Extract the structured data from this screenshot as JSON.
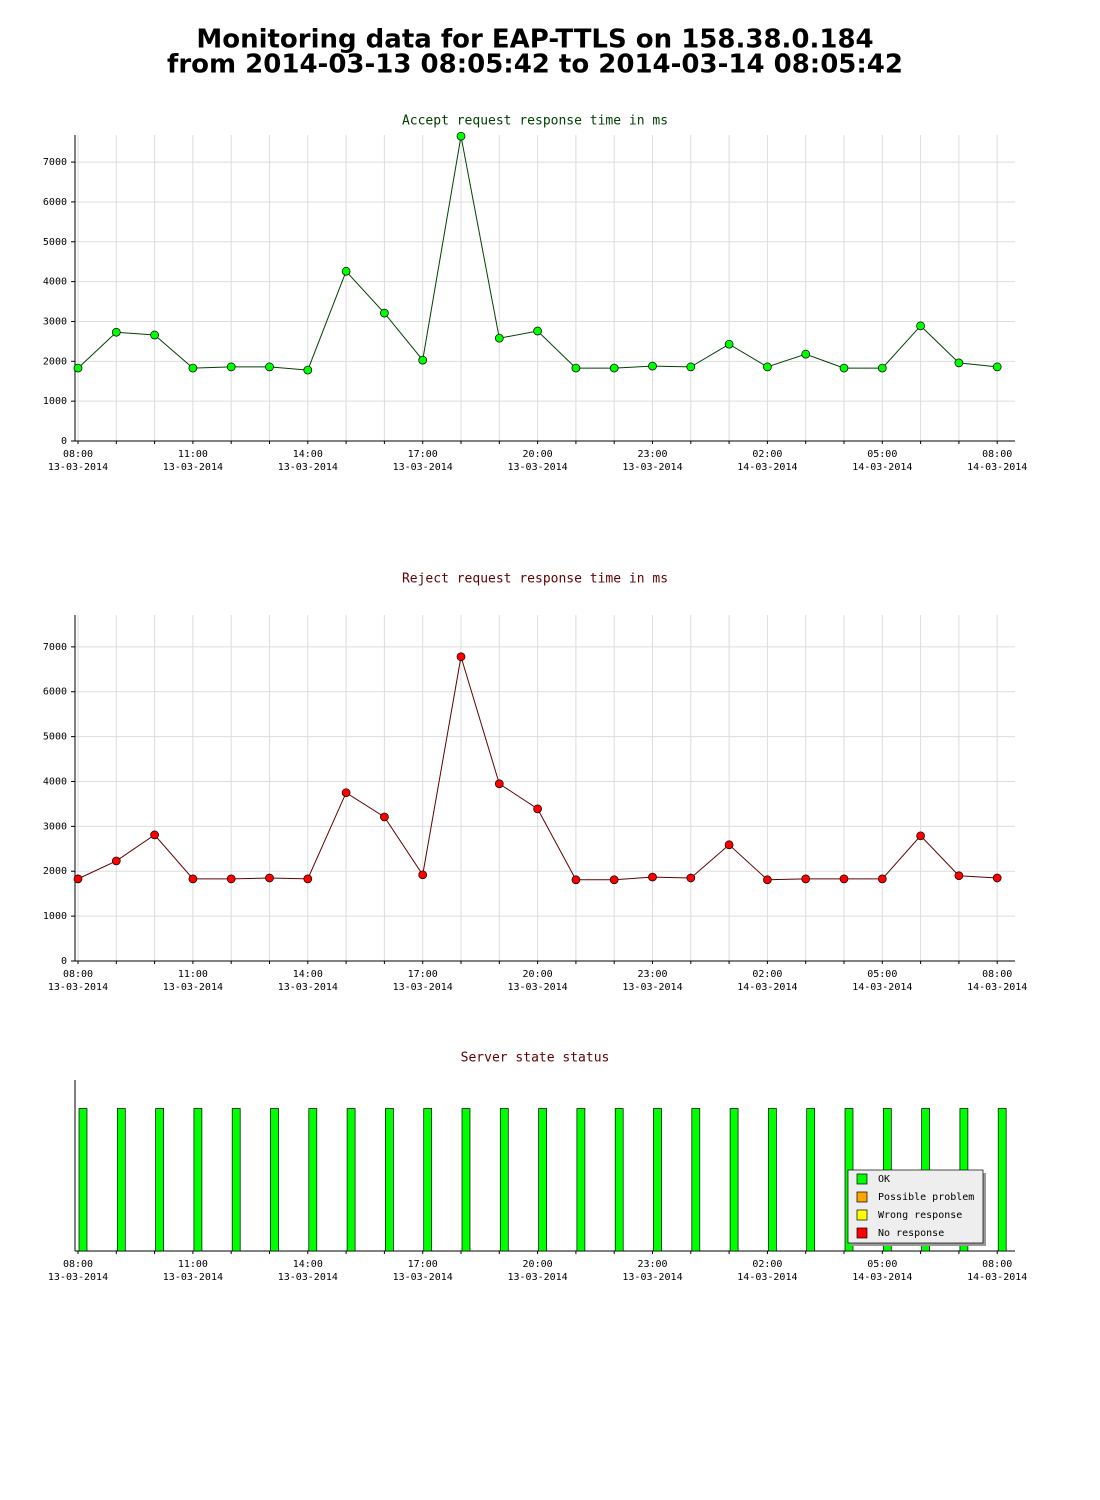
{
  "page_title": {
    "line1": "Monitoring data for EAP-TTLS on 158.38.0.184",
    "line2": "from 2014-03-13 08:05:42 to 2014-03-14 08:05:42"
  },
  "chart_data": [
    {
      "type": "line",
      "title": "Accept request response time in ms",
      "title_color": "#004000",
      "categories": [
        "08:00",
        null,
        null,
        "11:00",
        null,
        null,
        "14:00",
        null,
        null,
        "17:00",
        null,
        null,
        "20:00",
        null,
        null,
        "23:00",
        null,
        null,
        "02:00",
        null,
        null,
        "05:00",
        null,
        null,
        "08:00"
      ],
      "category_dates": [
        "13-03-2014",
        null,
        null,
        "13-03-2014",
        null,
        null,
        "13-03-2014",
        null,
        null,
        "13-03-2014",
        null,
        null,
        "13-03-2014",
        null,
        null,
        "13-03-2014",
        null,
        null,
        "14-03-2014",
        null,
        null,
        "14-03-2014",
        null,
        null,
        "14-03-2014"
      ],
      "series": [
        {
          "color": "#00ff00",
          "line_color": "#004000",
          "values": [
            1830,
            2730,
            2660,
            1830,
            1860,
            1860,
            1780,
            4260,
            3210,
            2030,
            7650,
            2580,
            2760,
            1830,
            1830,
            1880,
            1860,
            2430,
            1860,
            2180,
            1830,
            1830,
            2890,
            1960,
            1860
          ]
        }
      ],
      "ylim": [
        0,
        7680
      ],
      "yticks": [
        0,
        1000,
        2000,
        3000,
        4000,
        5000,
        6000,
        7000
      ],
      "grid": true
    },
    {
      "type": "line",
      "title": "Reject request response time in ms",
      "title_color": "#600000",
      "categories": [
        "08:00",
        null,
        null,
        "11:00",
        null,
        null,
        "14:00",
        null,
        null,
        "17:00",
        null,
        null,
        "20:00",
        null,
        null,
        "23:00",
        null,
        null,
        "02:00",
        null,
        null,
        "05:00",
        null,
        null,
        "08:00"
      ],
      "category_dates": [
        "13-03-2014",
        null,
        null,
        "13-03-2014",
        null,
        null,
        "13-03-2014",
        null,
        null,
        "13-03-2014",
        null,
        null,
        "13-03-2014",
        null,
        null,
        "13-03-2014",
        null,
        null,
        "14-03-2014",
        null,
        null,
        "14-03-2014",
        null,
        null,
        "14-03-2014"
      ],
      "series": [
        {
          "color": "#ff0000",
          "line_color": "#600000",
          "values": [
            1830,
            2230,
            2810,
            1830,
            1830,
            1850,
            1830,
            3750,
            3210,
            1920,
            6780,
            3950,
            3390,
            1810,
            1810,
            1870,
            1850,
            2590,
            1810,
            1830,
            1830,
            1830,
            2790,
            1900,
            1850
          ]
        }
      ],
      "ylim": [
        0,
        7710
      ],
      "yticks": [
        0,
        1000,
        2000,
        3000,
        4000,
        5000,
        6000,
        7000
      ],
      "grid": true
    },
    {
      "type": "bar",
      "title": "Server state status",
      "title_color": "#600000",
      "categories": [
        "08:00",
        null,
        null,
        "11:00",
        null,
        null,
        "14:00",
        null,
        null,
        "17:00",
        null,
        null,
        "20:00",
        null,
        null,
        "23:00",
        null,
        null,
        "02:00",
        null,
        null,
        "05:00",
        null,
        null,
        "08:00"
      ],
      "category_dates": [
        "13-03-2014",
        null,
        null,
        "13-03-2014",
        null,
        null,
        "13-03-2014",
        null,
        null,
        "13-03-2014",
        null,
        null,
        "13-03-2014",
        null,
        null,
        "13-03-2014",
        null,
        null,
        "14-03-2014",
        null,
        null,
        "14-03-2014",
        null,
        null,
        "14-03-2014"
      ],
      "series": [
        {
          "name": "OK",
          "color": "#00ff00",
          "values": [
            1,
            1,
            1,
            1,
            1,
            1,
            1,
            1,
            1,
            1,
            1,
            1,
            1,
            1,
            1,
            1,
            1,
            1,
            1,
            1,
            1,
            1,
            1,
            1,
            1
          ]
        },
        {
          "name": "Possible problem",
          "color": "#ffa500",
          "values": [
            0,
            0,
            0,
            0,
            0,
            0,
            0,
            0,
            0,
            0,
            0,
            0,
            0,
            0,
            0,
            0,
            0,
            0,
            0,
            0,
            0,
            0,
            0,
            0,
            0
          ]
        },
        {
          "name": "Wrong response",
          "color": "#ffff00",
          "values": [
            0,
            0,
            0,
            0,
            0,
            0,
            0,
            0,
            0,
            0,
            0,
            0,
            0,
            0,
            0,
            0,
            0,
            0,
            0,
            0,
            0,
            0,
            0,
            0,
            0
          ]
        },
        {
          "name": "No response",
          "color": "#ff0000",
          "values": [
            0,
            0,
            0,
            0,
            0,
            0,
            0,
            0,
            0,
            0,
            0,
            0,
            0,
            0,
            0,
            0,
            0,
            0,
            0,
            0,
            0,
            0,
            0,
            0,
            0
          ]
        }
      ],
      "ylim": [
        0,
        1.2
      ],
      "grid": false,
      "legend": "lower right"
    }
  ]
}
